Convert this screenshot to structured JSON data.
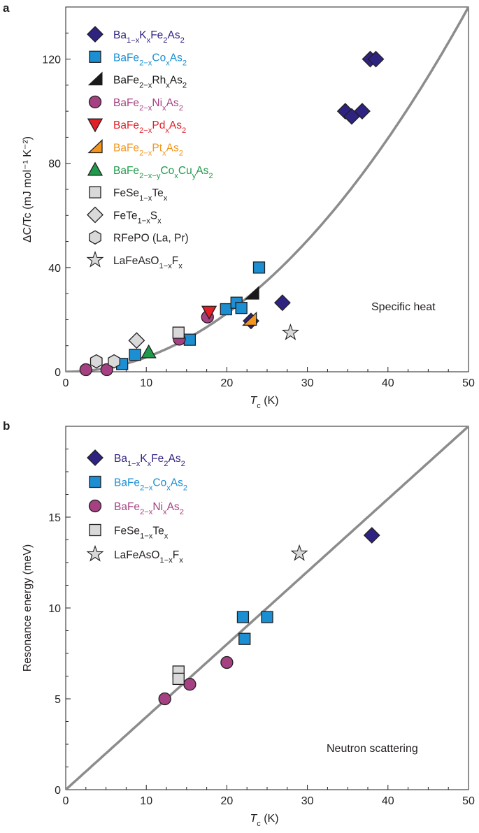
{
  "panel_labels": {
    "a": "a",
    "b": "b"
  },
  "colors": {
    "ba_k": "#2e2381",
    "ba_co": "#1b8fd2",
    "ba_rh": "#1a1a1a",
    "ba_ni": "#a54182",
    "ba_pd": "#e41e26",
    "ba_pt": "#f4961e",
    "ba_cocu": "#1e9a4a",
    "fese": "#d9d9d9",
    "gray_fill": "#d9d9d9",
    "curve": "#8c8c8c",
    "axis": "#231f20"
  },
  "chart_data": [
    {
      "panel": "a",
      "type": "scatter",
      "xlabel": {
        "main": "T",
        "sub": "c",
        "unit": " (K)"
      },
      "ylabel": "ΔC/Tc (mJ mol⁻¹ K⁻²)",
      "xlim": [
        0,
        50
      ],
      "ylim": [
        0,
        140
      ],
      "xticks": [
        0,
        10,
        20,
        30,
        40,
        50
      ],
      "yticks": [
        0,
        40,
        80,
        120
      ],
      "annotation": "Specific heat",
      "fit_curve": {
        "form": "power",
        "coefficient": 0.056,
        "exponent": 2,
        "label": ""
      },
      "legend": [
        {
          "key": "ba_k",
          "marker": "diamond",
          "color": "ba_k",
          "parts": [
            [
              "Ba",
              ""
            ],
            [
              "1−x",
              "sub"
            ],
            [
              "K",
              ""
            ],
            [
              "x",
              "sub"
            ],
            [
              "Fe",
              ""
            ],
            [
              "2",
              "sub"
            ],
            [
              "As",
              ""
            ],
            [
              "2",
              "sub"
            ]
          ]
        },
        {
          "key": "ba_co",
          "marker": "square",
          "color": "ba_co",
          "parts": [
            [
              "BaFe",
              ""
            ],
            [
              "2−x",
              "sub"
            ],
            [
              "Co",
              ""
            ],
            [
              "x",
              "sub"
            ],
            [
              "As",
              ""
            ],
            [
              "2",
              "sub"
            ]
          ]
        },
        {
          "key": "ba_rh",
          "marker": "halftri",
          "color": "ba_rh",
          "parts": [
            [
              "BaFe",
              ""
            ],
            [
              "2−x",
              "sub"
            ],
            [
              "Rh",
              ""
            ],
            [
              "x",
              "sub"
            ],
            [
              "As",
              ""
            ],
            [
              "2",
              "sub"
            ]
          ]
        },
        {
          "key": "ba_ni",
          "marker": "circle",
          "color": "ba_ni",
          "parts": [
            [
              "BaFe",
              ""
            ],
            [
              "2−x",
              "sub"
            ],
            [
              "Ni",
              ""
            ],
            [
              "x",
              "sub"
            ],
            [
              "As",
              ""
            ],
            [
              "2",
              "sub"
            ]
          ]
        },
        {
          "key": "ba_pd",
          "marker": "tri_down",
          "color": "ba_pd",
          "parts": [
            [
              "BaFe",
              ""
            ],
            [
              "2−x",
              "sub"
            ],
            [
              "Pd",
              ""
            ],
            [
              "x",
              "sub"
            ],
            [
              "As",
              ""
            ],
            [
              "2",
              "sub"
            ]
          ]
        },
        {
          "key": "ba_pt",
          "marker": "halftri_o",
          "color": "ba_pt",
          "parts": [
            [
              "BaFe",
              ""
            ],
            [
              "2−x",
              "sub"
            ],
            [
              "Pt",
              ""
            ],
            [
              "x",
              "sub"
            ],
            [
              "As",
              ""
            ],
            [
              "2",
              "sub"
            ]
          ]
        },
        {
          "key": "ba_cocu",
          "marker": "tri_up",
          "color": "ba_cocu",
          "parts": [
            [
              "BaFe",
              ""
            ],
            [
              "2−x−y",
              "sub"
            ],
            [
              "Co",
              ""
            ],
            [
              "x",
              "sub"
            ],
            [
              "Cu",
              ""
            ],
            [
              "y",
              "sub"
            ],
            [
              "As",
              ""
            ],
            [
              "2",
              "sub"
            ]
          ]
        },
        {
          "key": "fese",
          "marker": "square",
          "color": "gray_fill",
          "text_color": "axis",
          "parts": [
            [
              "FeSe",
              ""
            ],
            [
              "1−x",
              "sub"
            ],
            [
              "Te",
              ""
            ],
            [
              "x",
              "sub"
            ]
          ]
        },
        {
          "key": "fete",
          "marker": "diamond",
          "color": "gray_fill",
          "text_color": "axis",
          "parts": [
            [
              "FeTe",
              ""
            ],
            [
              "1−x",
              "sub"
            ],
            [
              "S",
              ""
            ],
            [
              "x",
              "sub"
            ]
          ]
        },
        {
          "key": "rfepo",
          "marker": "hexagon",
          "color": "gray_fill",
          "text_color": "axis",
          "parts": [
            [
              "RFePO (La, Pr)",
              ""
            ]
          ]
        },
        {
          "key": "lafe",
          "marker": "star",
          "color": "gray_fill",
          "text_color": "axis",
          "parts": [
            [
              "LaFeAsO",
              ""
            ],
            [
              "1−x",
              "sub"
            ],
            [
              "F",
              ""
            ],
            [
              "x",
              "sub"
            ]
          ]
        }
      ],
      "series": [
        {
          "key": "ba_k",
          "points": [
            [
              34.7,
              100
            ],
            [
              35.5,
              98
            ],
            [
              36.8,
              100
            ],
            [
              37.8,
              120
            ],
            [
              38.5,
              120
            ],
            [
              26.9,
              26.5
            ],
            [
              23.0,
              19.5
            ]
          ]
        },
        {
          "key": "ba_co",
          "points": [
            [
              7.0,
              3
            ],
            [
              8.6,
              6.5
            ],
            [
              15.4,
              12.3
            ],
            [
              19.9,
              24
            ],
            [
              21.2,
              26.5
            ],
            [
              21.8,
              24.5
            ],
            [
              24.0,
              40
            ]
          ]
        },
        {
          "key": "ba_rh",
          "points": [
            [
              23.1,
              30
            ]
          ]
        },
        {
          "key": "ba_ni",
          "points": [
            [
              2.5,
              0.8
            ],
            [
              5.1,
              0.8
            ],
            [
              14.1,
              12.5
            ],
            [
              17.6,
              21
            ]
          ]
        },
        {
          "key": "ba_pd",
          "points": [
            [
              17.8,
              23
            ]
          ]
        },
        {
          "key": "ba_pt",
          "points": [
            [
              22.8,
              20
            ]
          ]
        },
        {
          "key": "ba_cocu",
          "points": [
            [
              10.3,
              7.5
            ]
          ]
        },
        {
          "key": "fese",
          "points": [
            [
              14.0,
              15
            ]
          ]
        },
        {
          "key": "fete",
          "points": [
            [
              8.8,
              12
            ]
          ]
        },
        {
          "key": "rfepo",
          "points": [
            [
              3.8,
              4
            ],
            [
              6.0,
              4
            ]
          ]
        },
        {
          "key": "lafe",
          "points": [
            [
              27.9,
              15
            ]
          ]
        }
      ]
    },
    {
      "panel": "b",
      "type": "scatter",
      "xlabel": {
        "main": "T",
        "sub": "c",
        "unit": " (K)"
      },
      "ylabel": "Resonance energy (meV)",
      "xlim": [
        0,
        50
      ],
      "ylim": [
        0,
        20
      ],
      "xticks": [
        0,
        10,
        20,
        30,
        40,
        50
      ],
      "yticks": [
        0,
        5,
        10,
        15
      ],
      "annotation": "Neutron scattering",
      "fit_curve": {
        "form": "linear",
        "slope": 0.4,
        "label": ""
      },
      "legend": [
        {
          "key": "ba_k",
          "marker": "diamond",
          "color": "ba_k",
          "parts": [
            [
              "Ba",
              ""
            ],
            [
              "1−x",
              "sub"
            ],
            [
              "K",
              ""
            ],
            [
              "x",
              "sub"
            ],
            [
              "Fe",
              ""
            ],
            [
              "2",
              "sub"
            ],
            [
              "As",
              ""
            ],
            [
              "2",
              "sub"
            ]
          ]
        },
        {
          "key": "ba_co",
          "marker": "square",
          "color": "ba_co",
          "parts": [
            [
              "BaFe",
              ""
            ],
            [
              "2−x",
              "sub"
            ],
            [
              "Co",
              ""
            ],
            [
              "x",
              "sub"
            ],
            [
              "As",
              ""
            ],
            [
              "2",
              "sub"
            ]
          ]
        },
        {
          "key": "ba_ni",
          "marker": "circle",
          "color": "ba_ni",
          "parts": [
            [
              "BaFe",
              ""
            ],
            [
              "2−x",
              "sub"
            ],
            [
              "Ni",
              ""
            ],
            [
              "x",
              "sub"
            ],
            [
              "As",
              ""
            ],
            [
              "2",
              "sub"
            ]
          ]
        },
        {
          "key": "fese",
          "marker": "square",
          "color": "gray_fill",
          "text_color": "axis",
          "parts": [
            [
              "FeSe",
              ""
            ],
            [
              "1−x",
              "sub"
            ],
            [
              "Te",
              ""
            ],
            [
              "x",
              "sub"
            ]
          ]
        },
        {
          "key": "lafe",
          "marker": "star",
          "color": "gray_fill",
          "text_color": "axis",
          "parts": [
            [
              "LaFeAsO",
              ""
            ],
            [
              "1−x",
              "sub"
            ],
            [
              "F",
              ""
            ],
            [
              "x",
              "sub"
            ]
          ]
        }
      ],
      "series": [
        {
          "key": "ba_k",
          "points": [
            [
              38.0,
              14
            ]
          ]
        },
        {
          "key": "ba_co",
          "points": [
            [
              22.0,
              9.5
            ],
            [
              22.2,
              8.3
            ],
            [
              25.0,
              9.5
            ]
          ]
        },
        {
          "key": "ba_ni",
          "points": [
            [
              12.3,
              5
            ],
            [
              15.4,
              5.8
            ],
            [
              20.0,
              7
            ]
          ]
        },
        {
          "key": "fese",
          "points": [
            [
              14.0,
              6.5
            ],
            [
              14.0,
              6.1
            ]
          ]
        },
        {
          "key": "lafe",
          "points": [
            [
              29.0,
              13
            ]
          ]
        }
      ]
    }
  ]
}
